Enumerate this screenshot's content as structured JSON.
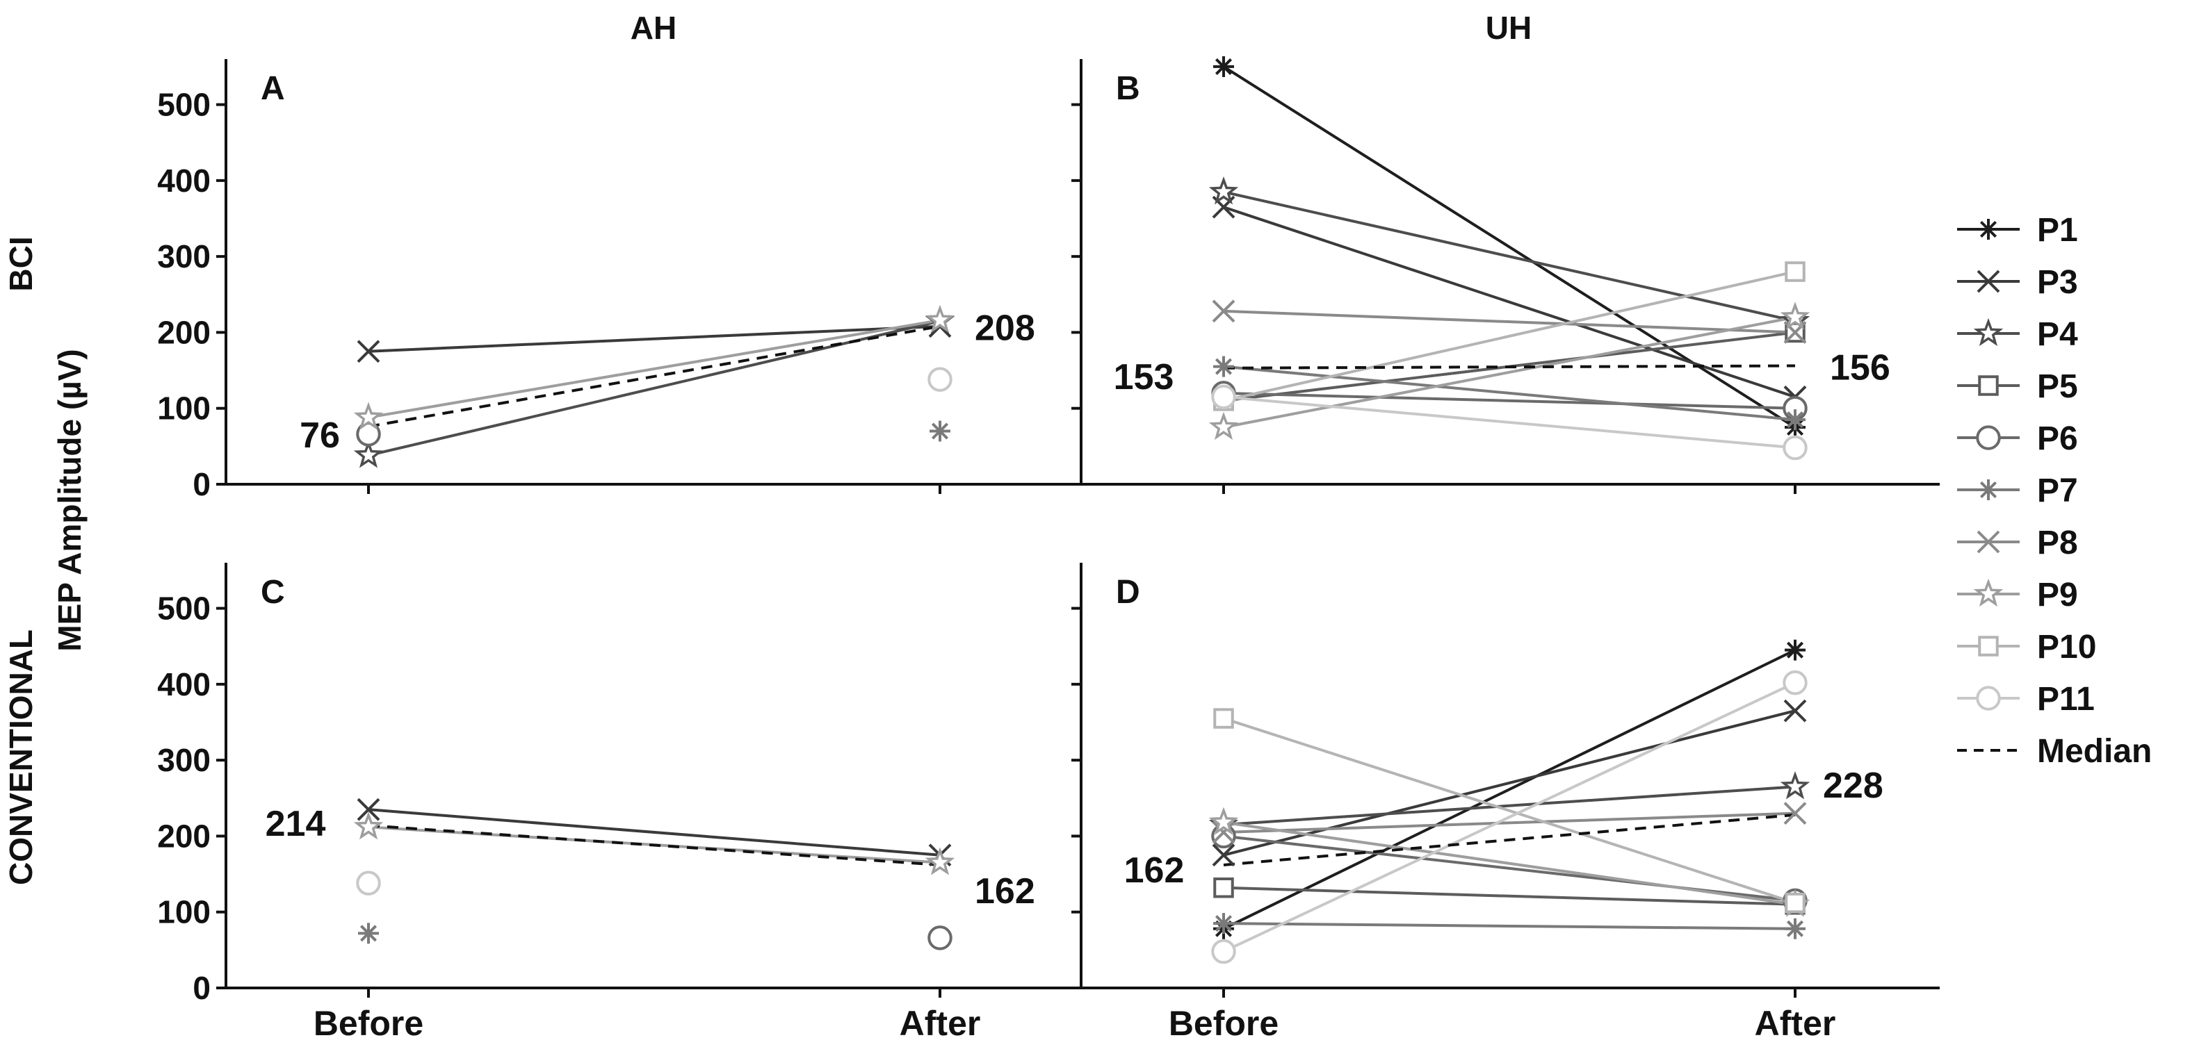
{
  "column_titles": [
    "AH",
    "UH"
  ],
  "row_labels": [
    "BCI",
    "CONVENTIONAL"
  ],
  "ylabel": "MEP Amplitude (µV)",
  "legend": [
    {
      "name": "P1",
      "marker": "asterisk",
      "color": "#1e1e1e"
    },
    {
      "name": "P3",
      "marker": "x",
      "color": "#3a3a3a"
    },
    {
      "name": "P4",
      "marker": "star",
      "color": "#4d4d4d"
    },
    {
      "name": "P5",
      "marker": "square",
      "color": "#5c5c5c"
    },
    {
      "name": "P6",
      "marker": "circle",
      "color": "#6a6a6a"
    },
    {
      "name": "P7",
      "marker": "asterisk",
      "color": "#7a7a7a"
    },
    {
      "name": "P8",
      "marker": "x",
      "color": "#8a8a8a"
    },
    {
      "name": "P9",
      "marker": "star",
      "color": "#9e9e9e"
    },
    {
      "name": "P10",
      "marker": "square",
      "color": "#b4b4b4"
    },
    {
      "name": "P11",
      "marker": "circle",
      "color": "#c8c8c8"
    },
    {
      "name": "Median",
      "marker": "dashed",
      "color": "#111111"
    }
  ],
  "chart_data": [
    {
      "panel": "A",
      "type": "line",
      "categories": [
        "Before",
        "After"
      ],
      "yticks": [
        0,
        100,
        200,
        300,
        400,
        500
      ],
      "ylim": [
        0,
        560
      ],
      "median": {
        "values": [
          76,
          208
        ],
        "labels": [
          "76",
          "208"
        ]
      },
      "series": [
        {
          "name": "P1",
          "values": [
            null,
            null
          ]
        },
        {
          "name": "P3",
          "values": [
            175,
            208
          ]
        },
        {
          "name": "P4",
          "values": [
            38,
            215
          ]
        },
        {
          "name": "P6",
          "values": [
            66,
            null
          ]
        },
        {
          "name": "P7",
          "values": [
            null,
            70
          ]
        },
        {
          "name": "P9",
          "values": [
            88,
            216
          ]
        },
        {
          "name": "P11",
          "values": [
            null,
            138
          ]
        }
      ]
    },
    {
      "panel": "B",
      "type": "line",
      "categories": [
        "Before",
        "After"
      ],
      "yticks": [
        0,
        100,
        200,
        300,
        400,
        500
      ],
      "ylim": [
        0,
        560
      ],
      "median": {
        "values": [
          153,
          156
        ],
        "labels": [
          "153",
          "156"
        ]
      },
      "series": [
        {
          "name": "P1",
          "values": [
            550,
            75
          ]
        },
        {
          "name": "P3",
          "values": [
            365,
            115
          ]
        },
        {
          "name": "P4",
          "values": [
            385,
            215
          ]
        },
        {
          "name": "P5",
          "values": [
            110,
            200
          ]
        },
        {
          "name": "P6",
          "values": [
            120,
            100
          ]
        },
        {
          "name": "P7",
          "values": [
            155,
            85
          ]
        },
        {
          "name": "P8",
          "values": [
            228,
            200
          ]
        },
        {
          "name": "P9",
          "values": [
            75,
            220
          ]
        },
        {
          "name": "P10",
          "values": [
            110,
            280
          ]
        },
        {
          "name": "P11",
          "values": [
            115,
            48
          ]
        }
      ]
    },
    {
      "panel": "C",
      "type": "line",
      "categories": [
        "Before",
        "After"
      ],
      "yticks": [
        0,
        100,
        200,
        300,
        400,
        500
      ],
      "ylim": [
        0,
        560
      ],
      "median": {
        "values": [
          214,
          162
        ],
        "labels": [
          "214",
          "162"
        ]
      },
      "series": [
        {
          "name": "P3",
          "values": [
            235,
            175
          ]
        },
        {
          "name": "P6",
          "values": [
            null,
            66
          ]
        },
        {
          "name": "P7",
          "values": [
            72,
            null
          ]
        },
        {
          "name": "P9",
          "values": [
            212,
            165
          ]
        },
        {
          "name": "P11",
          "values": [
            138,
            null
          ]
        }
      ]
    },
    {
      "panel": "D",
      "type": "line",
      "categories": [
        "Before",
        "After"
      ],
      "yticks": [
        0,
        100,
        200,
        300,
        400,
        500
      ],
      "ylim": [
        0,
        560
      ],
      "median": {
        "values": [
          162,
          228
        ],
        "labels": [
          "162",
          "228"
        ]
      },
      "series": [
        {
          "name": "P1",
          "values": [
            78,
            445
          ]
        },
        {
          "name": "P3",
          "values": [
            175,
            365
          ]
        },
        {
          "name": "P4",
          "values": [
            215,
            265
          ]
        },
        {
          "name": "P5",
          "values": [
            132,
            110
          ]
        },
        {
          "name": "P6",
          "values": [
            200,
            115
          ]
        },
        {
          "name": "P7",
          "values": [
            85,
            78
          ]
        },
        {
          "name": "P8",
          "values": [
            205,
            230
          ]
        },
        {
          "name": "P9",
          "values": [
            218,
            110
          ]
        },
        {
          "name": "P10",
          "values": [
            355,
            112
          ]
        },
        {
          "name": "P11",
          "values": [
            48,
            402
          ]
        }
      ]
    }
  ]
}
